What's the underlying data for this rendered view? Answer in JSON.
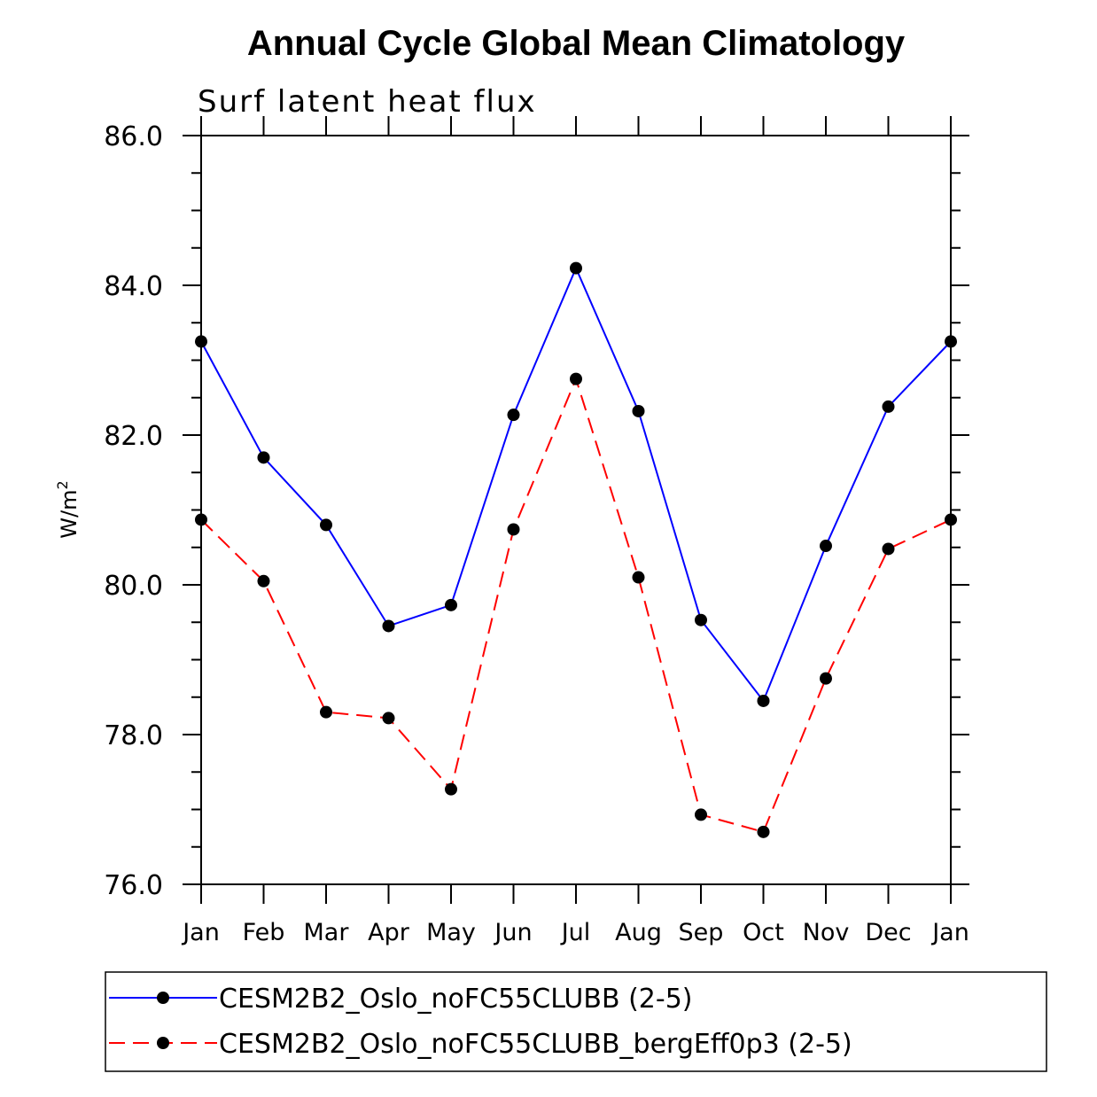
{
  "chart_data": {
    "type": "line",
    "title": "Annual Cycle Global Mean Climatology",
    "subtitle": "Surf latent heat flux",
    "ylabel": "W/m",
    "ylabel_sup": "2",
    "ylim": [
      76.0,
      86.0
    ],
    "yticks": [
      76.0,
      78.0,
      80.0,
      82.0,
      84.0,
      86.0
    ],
    "ytick_labels": [
      "76.0",
      "78.0",
      "80.0",
      "82.0",
      "84.0",
      "86.0"
    ],
    "categories": [
      "Jan",
      "Feb",
      "Mar",
      "Apr",
      "May",
      "Jun",
      "Jul",
      "Aug",
      "Sep",
      "Oct",
      "Nov",
      "Dec",
      "Jan"
    ],
    "series": [
      {
        "name": "CESM2B2_Oslo_noFC55CLUBB (2-5)",
        "color": "#0000ff",
        "dashed": false,
        "values": [
          83.25,
          81.7,
          80.8,
          79.45,
          79.73,
          82.27,
          84.23,
          82.32,
          79.53,
          78.45,
          80.52,
          82.38,
          83.25
        ]
      },
      {
        "name": "CESM2B2_Oslo_noFC55CLUBB_bergEff0p3 (2-5)",
        "color": "#ff0000",
        "dashed": true,
        "values": [
          80.87,
          80.05,
          78.3,
          78.22,
          77.27,
          80.74,
          82.75,
          80.1,
          76.93,
          76.7,
          78.75,
          80.48,
          80.87
        ]
      }
    ],
    "legend_position": "bottom",
    "marker_color": "#000000"
  }
}
